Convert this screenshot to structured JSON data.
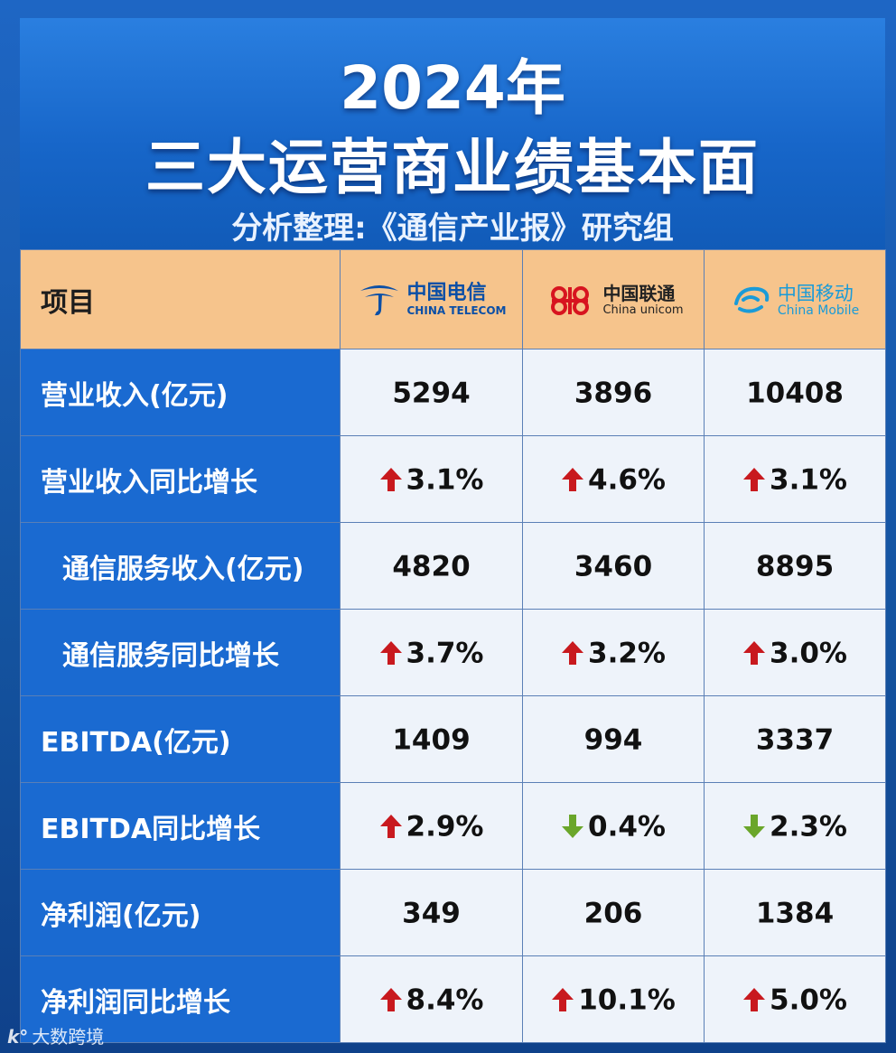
{
  "header": {
    "title_line1": "2024年",
    "title_line2": "三大运营商业绩基本面",
    "subtitle": "分析整理:《通信产业报》研究组"
  },
  "table": {
    "item_header": "项目",
    "carriers": [
      {
        "cn": "中国电信",
        "en": "CHINA TELECOM",
        "brand_color": "#0b4fa6"
      },
      {
        "cn": "中国联通",
        "en": "China unicom",
        "brand_color": "#d7141f"
      },
      {
        "cn": "中国移动",
        "en": "China Mobile",
        "brand_color": "#1a9bd8"
      }
    ]
  },
  "chart_data": {
    "type": "table",
    "title": "2024年 三大运营商业绩基本面",
    "columns": [
      "项目",
      "中国电信",
      "中国联通",
      "中国移动"
    ],
    "rows": [
      {
        "label": "营业收入(亿元)",
        "indent": false,
        "cells": [
          {
            "text": "5294"
          },
          {
            "text": "3896"
          },
          {
            "text": "10408"
          }
        ]
      },
      {
        "label": "营业收入同比增长",
        "indent": false,
        "cells": [
          {
            "text": "3.1%",
            "dir": "up"
          },
          {
            "text": "4.6%",
            "dir": "up"
          },
          {
            "text": "3.1%",
            "dir": "up"
          }
        ]
      },
      {
        "label": "通信服务收入(亿元)",
        "indent": true,
        "cells": [
          {
            "text": "4820"
          },
          {
            "text": "3460"
          },
          {
            "text": "8895"
          }
        ]
      },
      {
        "label": "通信服务同比增长",
        "indent": true,
        "cells": [
          {
            "text": "3.7%",
            "dir": "up"
          },
          {
            "text": "3.2%",
            "dir": "up"
          },
          {
            "text": "3.0%",
            "dir": "up"
          }
        ]
      },
      {
        "label": "EBITDA(亿元)",
        "indent": false,
        "cells": [
          {
            "text": "1409"
          },
          {
            "text": "994"
          },
          {
            "text": "3337"
          }
        ]
      },
      {
        "label": "EBITDA同比增长",
        "indent": false,
        "cells": [
          {
            "text": "2.9%",
            "dir": "up"
          },
          {
            "text": "0.4%",
            "dir": "down"
          },
          {
            "text": "2.3%",
            "dir": "down"
          }
        ]
      },
      {
        "label": "净利润(亿元)",
        "indent": false,
        "cells": [
          {
            "text": "349"
          },
          {
            "text": "206"
          },
          {
            "text": "1384"
          }
        ]
      },
      {
        "label": "净利润同比增长",
        "indent": false,
        "cells": [
          {
            "text": "8.4%",
            "dir": "up"
          },
          {
            "text": "10.1%",
            "dir": "up"
          },
          {
            "text": "5.0%",
            "dir": "up"
          }
        ]
      }
    ]
  },
  "colors": {
    "up_arrow": "#c8191e",
    "down_arrow": "#6aa62a",
    "label_bg": "#1a6ad1",
    "header_row_bg": "#f6c48c"
  },
  "watermark": {
    "icon": "cc-logo-icon",
    "text": "大数跨境"
  }
}
